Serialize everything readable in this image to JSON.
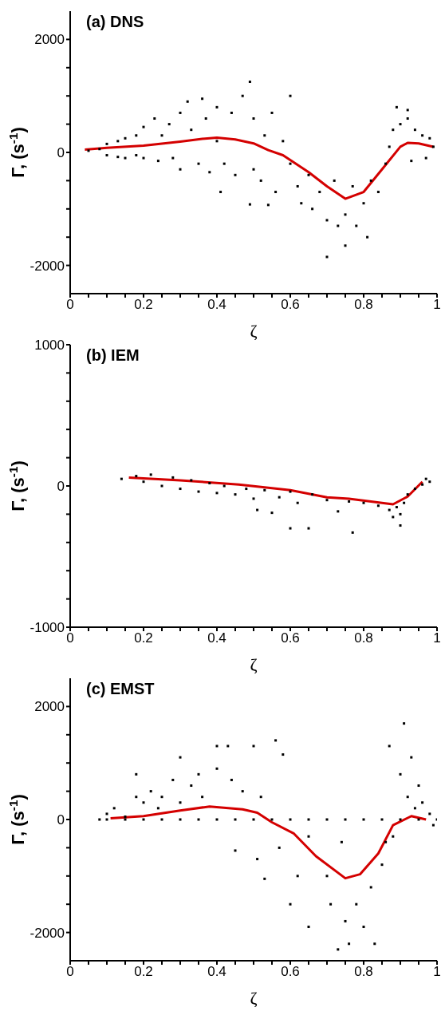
{
  "chart_data": [
    {
      "type": "scatter",
      "title": "(a) DNS",
      "xlabel": "ζ",
      "ylabel": "Γ, (s$^{-1}$)",
      "xlim": [
        0,
        1
      ],
      "ylim": [
        -2500,
        2500
      ],
      "xticks": [
        0,
        {
          "value": 0.05,
          "label": null
        },
        {
          "value": 0.1,
          "label": null
        },
        {
          "value": 0.15,
          "label": null
        },
        0.2,
        {
          "value": 0.25,
          "label": null
        },
        {
          "value": 0.3,
          "label": null
        },
        {
          "value": 0.35,
          "label": null
        },
        0.4,
        {
          "value": 0.45,
          "label": null
        },
        {
          "value": 0.5,
          "label": null
        },
        {
          "value": 0.55,
          "label": null
        },
        0.6,
        {
          "value": 0.65,
          "label": null
        },
        {
          "value": 0.7,
          "label": null
        },
        {
          "value": 0.75,
          "label": null
        },
        0.8,
        {
          "value": 0.85,
          "label": null
        },
        {
          "value": 0.9,
          "label": null
        },
        {
          "value": 0.95,
          "label": null
        },
        1
      ],
      "yticks": [
        -2000,
        {
          "value": -1500,
          "label": null
        },
        {
          "value": -1000,
          "label": null
        },
        {
          "value": -500,
          "label": null
        },
        0,
        {
          "value": 500,
          "label": null
        },
        {
          "value": 1000,
          "label": null
        },
        {
          "value": 1500,
          "label": null
        },
        2000
      ],
      "series": [
        {
          "color": "#000000",
          "marker": "square",
          "x": [
            0.05,
            0.08,
            0.1,
            0.1,
            0.13,
            0.13,
            0.15,
            0.15,
            0.18,
            0.18,
            0.2,
            0.2,
            0.23,
            0.24,
            0.25,
            0.27,
            0.28,
            0.3,
            0.3,
            0.32,
            0.33,
            0.35,
            0.36,
            0.37,
            0.38,
            0.4,
            0.4,
            0.42,
            0.44,
            0.45,
            0.47,
            0.49,
            0.41,
            0.49,
            0.5,
            0.5,
            0.52,
            0.53,
            0.54,
            0.55,
            0.56,
            0.58,
            0.6,
            0.6,
            0.62,
            0.63,
            0.65,
            0.66,
            0.68,
            0.7,
            0.7,
            0.72,
            0.73,
            0.75,
            0.75,
            0.77,
            0.78,
            0.8,
            0.81,
            0.82,
            0.84,
            0.86,
            0.87,
            0.88,
            0.89,
            0.9,
            0.92,
            0.92,
            0.93,
            0.94,
            0.96,
            0.97,
            0.98,
            0.99
          ],
          "values": [
            30,
            60,
            -50,
            150,
            -80,
            200,
            250,
            -100,
            300,
            -50,
            450,
            -100,
            600,
            -150,
            300,
            500,
            -100,
            700,
            -300,
            900,
            400,
            -200,
            950,
            600,
            -350,
            800,
            200,
            -200,
            700,
            -400,
            1000,
            1250,
            -700,
            -920,
            600,
            -300,
            -500,
            300,
            -930,
            700,
            -700,
            200,
            -200,
            1000,
            -600,
            -900,
            -400,
            -1000,
            -700,
            -1200,
            -1850,
            -500,
            -1300,
            -1100,
            -1650,
            -600,
            -1300,
            -900,
            -1500,
            -500,
            -700,
            -200,
            100,
            400,
            800,
            500,
            600,
            750,
            -150,
            400,
            300,
            -100,
            250,
            100
          ]
        },
        {
          "type": "line",
          "color": "#d40000",
          "marker": "none",
          "x": [
            0.04,
            0.1,
            0.2,
            0.3,
            0.36,
            0.4,
            0.45,
            0.5,
            0.54,
            0.58,
            0.65,
            0.7,
            0.75,
            0.8,
            0.85,
            0.9,
            0.92,
            0.95,
            0.99
          ],
          "values": [
            50,
            80,
            120,
            190,
            240,
            260,
            230,
            160,
            40,
            -50,
            -350,
            -600,
            -820,
            -700,
            -300,
            100,
            170,
            160,
            100
          ]
        }
      ]
    },
    {
      "type": "scatter",
      "title": "(b) IEM",
      "xlabel": "ζ",
      "ylabel": "Γ, (s$^{-1}$)",
      "xlim": [
        0,
        1
      ],
      "ylim": [
        -1000,
        1000
      ],
      "xticks": [
        0,
        {
          "value": 0.05,
          "label": null
        },
        {
          "value": 0.1,
          "label": null
        },
        {
          "value": 0.15,
          "label": null
        },
        0.2,
        {
          "value": 0.25,
          "label": null
        },
        {
          "value": 0.3,
          "label": null
        },
        {
          "value": 0.35,
          "label": null
        },
        0.4,
        {
          "value": 0.45,
          "label": null
        },
        {
          "value": 0.5,
          "label": null
        },
        {
          "value": 0.55,
          "label": null
        },
        0.6,
        {
          "value": 0.65,
          "label": null
        },
        {
          "value": 0.7,
          "label": null
        },
        {
          "value": 0.75,
          "label": null
        },
        0.8,
        {
          "value": 0.85,
          "label": null
        },
        {
          "value": 0.9,
          "label": null
        },
        {
          "value": 0.95,
          "label": null
        },
        1
      ],
      "yticks": [
        -1000,
        {
          "value": -800,
          "label": null
        },
        {
          "value": -600,
          "label": null
        },
        {
          "value": -400,
          "label": null
        },
        {
          "value": -200,
          "label": null
        },
        0,
        {
          "value": 200,
          "label": null
        },
        {
          "value": 400,
          "label": null
        },
        {
          "value": 600,
          "label": null
        },
        {
          "value": 800,
          "label": null
        },
        1000
      ],
      "series": [
        {
          "color": "#000000",
          "marker": "square",
          "x": [
            0.14,
            0.18,
            0.2,
            0.22,
            0.25,
            0.28,
            0.3,
            0.33,
            0.35,
            0.38,
            0.4,
            0.42,
            0.45,
            0.48,
            0.5,
            0.51,
            0.53,
            0.55,
            0.57,
            0.6,
            0.6,
            0.62,
            0.65,
            0.66,
            0.7,
            0.73,
            0.76,
            0.77,
            0.8,
            0.84,
            0.87,
            0.88,
            0.89,
            0.9,
            0.9,
            0.91,
            0.92,
            0.94,
            0.96,
            0.97,
            0.98
          ],
          "values": [
            50,
            70,
            30,
            80,
            0,
            60,
            -20,
            40,
            -40,
            20,
            -50,
            0,
            -60,
            -20,
            -90,
            -170,
            -30,
            -190,
            -80,
            -40,
            -300,
            -120,
            -300,
            -60,
            -100,
            -180,
            -110,
            -330,
            -120,
            -140,
            -170,
            -220,
            -150,
            -200,
            -280,
            -120,
            -60,
            -20,
            10,
            50,
            30
          ]
        },
        {
          "type": "line",
          "color": "#d40000",
          "marker": "none",
          "x": [
            0.16,
            0.3,
            0.46,
            0.6,
            0.7,
            0.76,
            0.82,
            0.88,
            0.92,
            0.96
          ],
          "values": [
            60,
            40,
            10,
            -30,
            -80,
            -90,
            -110,
            -130,
            -75,
            30
          ]
        }
      ]
    },
    {
      "type": "scatter",
      "title": "(c) EMST",
      "xlabel": "ζ",
      "ylabel": "Γ, (s$^{-1}$)",
      "xlim": [
        0,
        1
      ],
      "ylim": [
        -2500,
        2500
      ],
      "xticks": [
        0,
        {
          "value": 0.05,
          "label": null
        },
        {
          "value": 0.1,
          "label": null
        },
        {
          "value": 0.15,
          "label": null
        },
        0.2,
        {
          "value": 0.25,
          "label": null
        },
        {
          "value": 0.3,
          "label": null
        },
        {
          "value": 0.35,
          "label": null
        },
        0.4,
        {
          "value": 0.45,
          "label": null
        },
        {
          "value": 0.5,
          "label": null
        },
        {
          "value": 0.55,
          "label": null
        },
        0.6,
        {
          "value": 0.65,
          "label": null
        },
        {
          "value": 0.7,
          "label": null
        },
        {
          "value": 0.75,
          "label": null
        },
        0.8,
        {
          "value": 0.85,
          "label": null
        },
        {
          "value": 0.9,
          "label": null
        },
        {
          "value": 0.95,
          "label": null
        },
        1
      ],
      "yticks": [
        -2000,
        {
          "value": -1500,
          "label": null
        },
        {
          "value": -1000,
          "label": null
        },
        {
          "value": -500,
          "label": null
        },
        0,
        {
          "value": 500,
          "label": null
        },
        {
          "value": 1000,
          "label": null
        },
        {
          "value": 1500,
          "label": null
        },
        2000
      ],
      "series": [
        {
          "color": "#000000",
          "marker": "square",
          "x": [
            0.1,
            0.12,
            0.15,
            0.18,
            0.18,
            0.2,
            0.22,
            0.24,
            0.25,
            0.28,
            0.3,
            0.3,
            0.33,
            0.35,
            0.36,
            0.4,
            0.4,
            0.43,
            0.44,
            0.45,
            0.47,
            0.5,
            0.51,
            0.52,
            0.53,
            0.56,
            0.57,
            0.58,
            0.6,
            0.62,
            0.65,
            0.65,
            0.7,
            0.71,
            0.73,
            0.74,
            0.75,
            0.76,
            0.78,
            0.8,
            0.82,
            0.83,
            0.85,
            0.86,
            0.87,
            0.88,
            0.9,
            0.91,
            0.92,
            0.93,
            0.94,
            0.95,
            0.96,
            0.98,
            0.99,
            0.08,
            0.1,
            0.15,
            0.2,
            0.25,
            0.3,
            0.35,
            0.4,
            0.45,
            0.5,
            0.55,
            0.6,
            0.65,
            0.7,
            0.75,
            0.8,
            0.85,
            0.9,
            0.95,
            1
          ],
          "values": [
            100,
            200,
            50,
            400,
            800,
            300,
            500,
            200,
            400,
            700,
            1100,
            300,
            600,
            800,
            400,
            1300,
            900,
            1300,
            700,
            -550,
            500,
            1300,
            -700,
            400,
            -1050,
            1400,
            -500,
            1150,
            -1500,
            -1000,
            -300,
            -1900,
            -1000,
            -1500,
            -2300,
            -400,
            -1800,
            -2200,
            -1500,
            -1900,
            -1200,
            -2200,
            -800,
            -400,
            1300,
            -300,
            800,
            1700,
            400,
            1100,
            200,
            600,
            300,
            100,
            -100,
            0,
            0,
            0,
            0,
            0,
            0,
            0,
            0,
            0,
            0,
            0,
            0,
            0,
            0,
            0,
            0,
            0,
            0,
            0,
            0
          ]
        },
        {
          "type": "line",
          "color": "#d40000",
          "marker": "none",
          "x": [
            0.11,
            0.2,
            0.3,
            0.38,
            0.47,
            0.51,
            0.55,
            0.61,
            0.67,
            0.75,
            0.79,
            0.84,
            0.88,
            0.93,
            0.97
          ],
          "values": [
            20,
            60,
            160,
            230,
            180,
            120,
            -50,
            -250,
            -650,
            -1040,
            -970,
            -600,
            -100,
            60,
            0
          ]
        }
      ]
    }
  ]
}
